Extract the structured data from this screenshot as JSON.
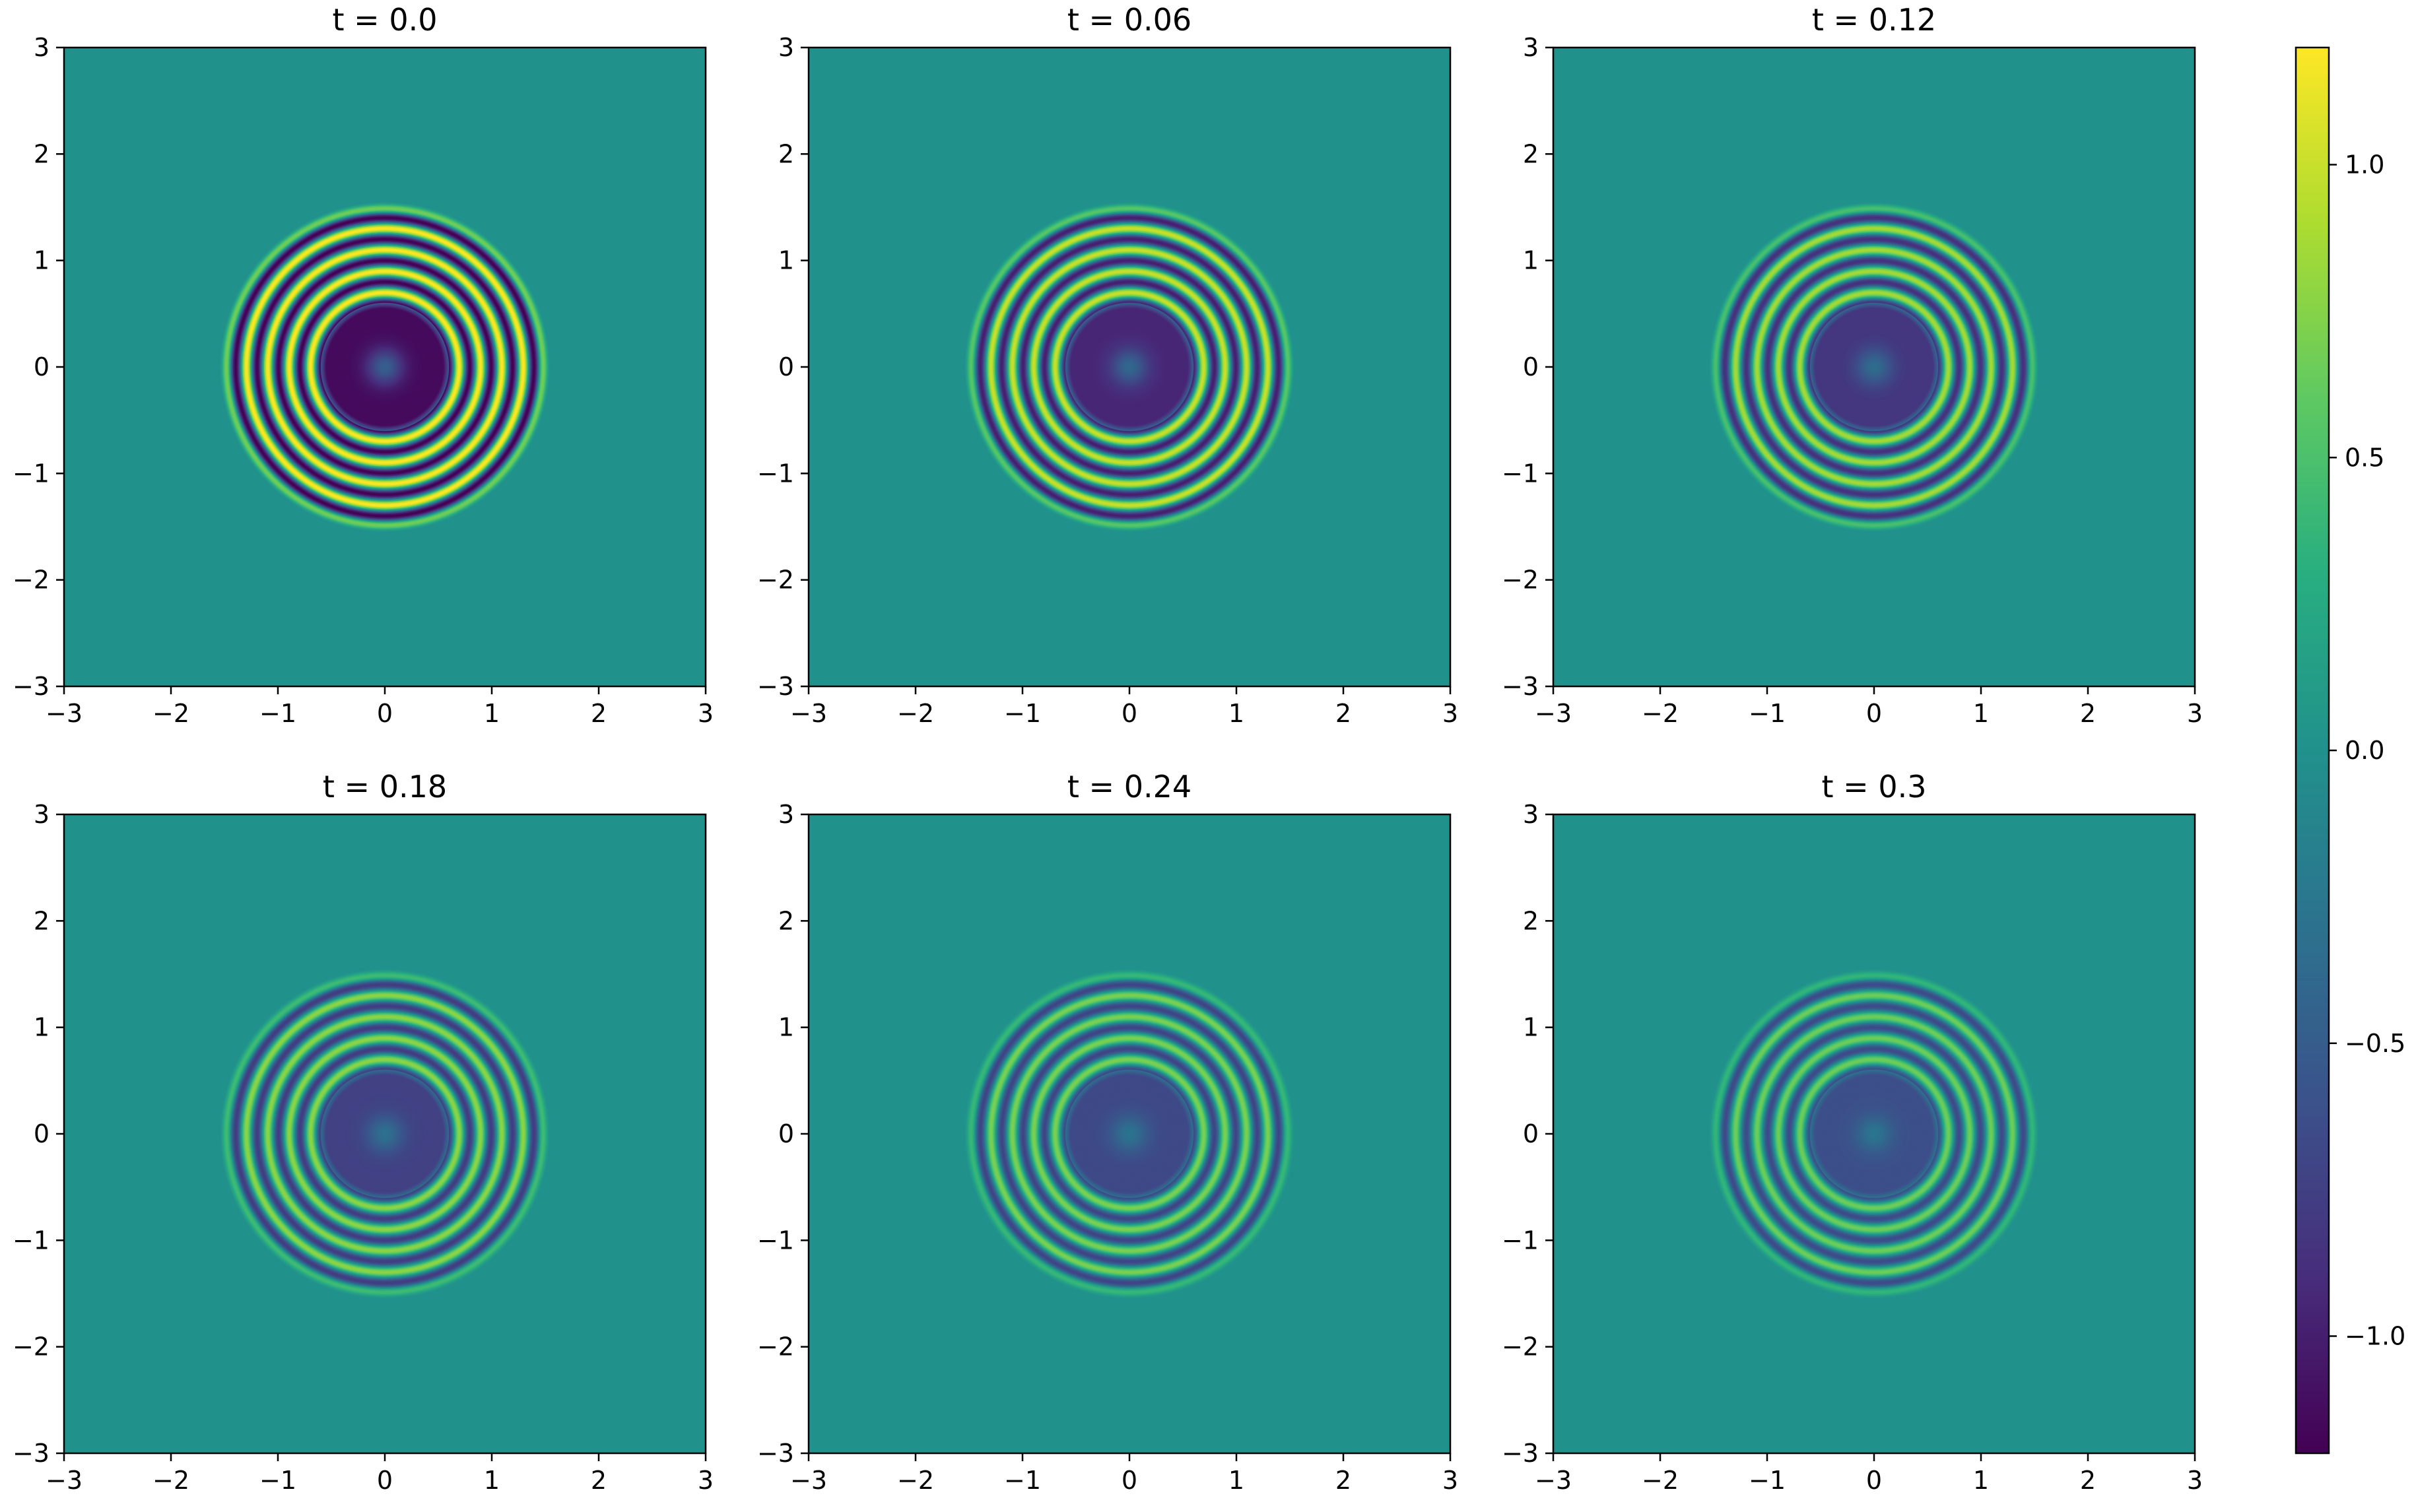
{
  "chart_data": {
    "type": "heatmap",
    "colormap": "viridis",
    "grid": false,
    "xlim": [
      -3,
      3
    ],
    "ylim": [
      -3,
      3
    ],
    "xticks": [
      -3,
      -2,
      -1,
      0,
      1,
      2,
      3
    ],
    "yticks": [
      -3,
      -2,
      -1,
      0,
      1,
      2,
      3
    ],
    "xtick_labels": [
      "−3",
      "−2",
      "−1",
      "0",
      "1",
      "2",
      "3"
    ],
    "ytick_labels": [
      "−3",
      "−2",
      "−1",
      "0",
      "1",
      "2",
      "3"
    ],
    "field": {
      "center": [
        0,
        0
      ],
      "support_radius": 1.5,
      "description_values": "radially symmetric concentric rings; value 0 outside radius 1.5"
    },
    "panels": [
      {
        "title": "t = 0.0",
        "t": 0.0,
        "amplitude": 1.2
      },
      {
        "title": "t = 0.06",
        "t": 0.06,
        "amplitude": 1.0
      },
      {
        "title": "t = 0.12",
        "t": 0.12,
        "amplitude": 0.87
      },
      {
        "title": "t = 0.18",
        "t": 0.18,
        "amplitude": 0.78
      },
      {
        "title": "t = 0.24",
        "t": 0.24,
        "amplitude": 0.71
      },
      {
        "title": "t = 0.3",
        "t": 0.3,
        "amplitude": 0.66
      }
    ],
    "colorbar": {
      "range": [
        -1.2,
        1.2
      ],
      "ticks": [
        1.0,
        0.5,
        0.0,
        -0.5,
        -1.0
      ],
      "tick_labels": [
        "1.0",
        "0.5",
        "0.0",
        "−0.5",
        "−1.0"
      ]
    }
  }
}
